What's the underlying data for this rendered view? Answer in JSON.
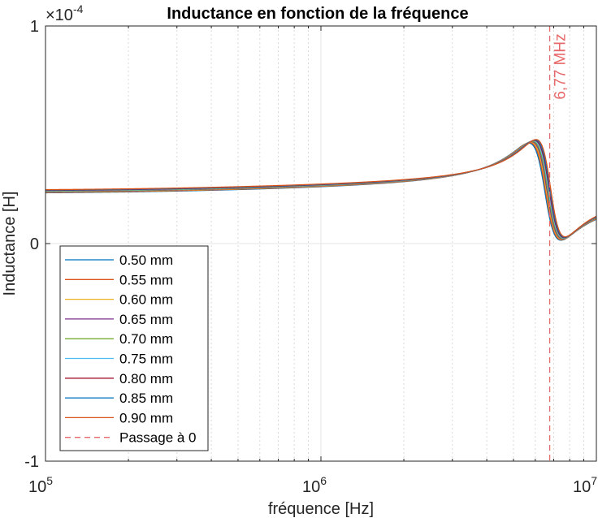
{
  "chart_data": {
    "type": "line",
    "title": "Inductance en fonction de la fréquence",
    "xlabel": "fréquence [Hz]",
    "ylabel": "Inductance [H]",
    "xscale": "log",
    "xlim": [
      100000,
      10000000
    ],
    "ylim": [
      -0.0001,
      0.0001
    ],
    "y_multiplier": "×10",
    "y_multiplier_exp": "-4",
    "x_ticks": [
      {
        "base": "10",
        "exp": "5",
        "value": 100000
      },
      {
        "base": "10",
        "exp": "6",
        "value": 1000000
      },
      {
        "base": "10",
        "exp": "7",
        "value": 10000000
      }
    ],
    "y_ticks": [
      {
        "label": "1",
        "value": 0.0001
      },
      {
        "label": "0",
        "value": 0
      },
      {
        "label": "-1",
        "value": -0.0001
      }
    ],
    "grid": true,
    "minor_grid": true,
    "legend_position": "bottom-left",
    "annotation": {
      "text": "6,77 MHz",
      "x": 6770000,
      "color": "#e8696b"
    },
    "series": [
      {
        "name": "0.50 mm",
        "color": "#0072bd",
        "L0": 2.29e-05,
        "f0": 6500000,
        "A": 2.08e-05,
        "Q": 7.4
      },
      {
        "name": "0.55 mm",
        "color": "#d95319",
        "L0": 2.31e-05,
        "f0": 6540000,
        "A": 2.08e-05,
        "Q": 7.5
      },
      {
        "name": "0.60 mm",
        "color": "#edb120",
        "L0": 2.33e-05,
        "f0": 6580000,
        "A": 2.08e-05,
        "Q": 7.6
      },
      {
        "name": "0.65 mm",
        "color": "#7e2f8e",
        "L0": 2.35e-05,
        "f0": 6620000,
        "A": 2.08e-05,
        "Q": 7.7
      },
      {
        "name": "0.70 mm",
        "color": "#77ac30",
        "L0": 2.37e-05,
        "f0": 6660000,
        "A": 2.08e-05,
        "Q": 7.8
      },
      {
        "name": "0.75 mm",
        "color": "#4dbeee",
        "L0": 2.39e-05,
        "f0": 6700000,
        "A": 2.08e-05,
        "Q": 7.9
      },
      {
        "name": "0.80 mm",
        "color": "#a2142f",
        "L0": 2.41e-05,
        "f0": 6740000,
        "A": 2.08e-05,
        "Q": 8.0
      },
      {
        "name": "0.85 mm",
        "color": "#0072bd",
        "L0": 2.43e-05,
        "f0": 6780000,
        "A": 2.08e-05,
        "Q": 8.1
      },
      {
        "name": "0.90 mm",
        "color": "#d95319",
        "L0": 2.45e-05,
        "f0": 6820000,
        "A": 2.08e-05,
        "Q": 8.2
      }
    ],
    "reference_line": {
      "name": "Passage à 0",
      "x": 6770000,
      "color": "#e8696b",
      "style": "dashed"
    }
  }
}
